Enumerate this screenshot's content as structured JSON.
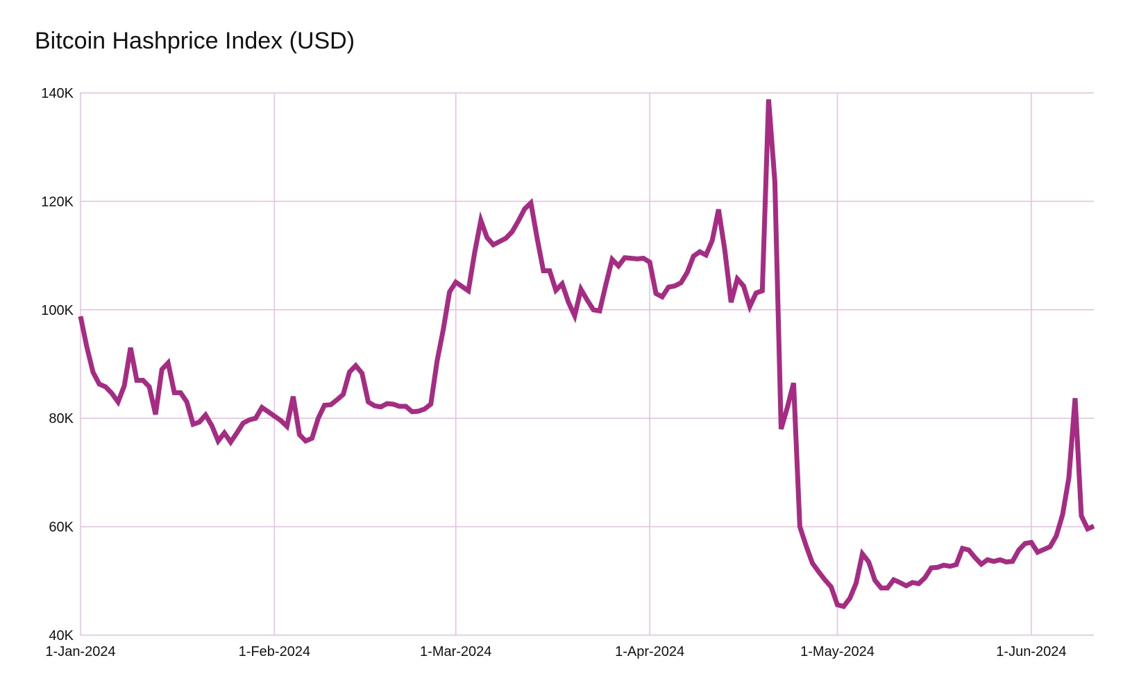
{
  "chart_data": {
    "type": "line",
    "title": "Bitcoin Hashprice Index (USD)",
    "xlabel": "",
    "ylabel": "",
    "x_range": [
      "2024-01-01",
      "2024-06-11"
    ],
    "ylim": [
      40000,
      140000
    ],
    "yticks": [
      {
        "value": 40000,
        "label": "40K"
      },
      {
        "value": 60000,
        "label": "60K"
      },
      {
        "value": 80000,
        "label": "80K"
      },
      {
        "value": 100000,
        "label": "100K"
      },
      {
        "value": 120000,
        "label": "120K"
      },
      {
        "value": 140000,
        "label": "140K"
      }
    ],
    "xticks": [
      {
        "date": "2024-01-01",
        "label": "1-Jan-2024"
      },
      {
        "date": "2024-02-01",
        "label": "1-Feb-2024"
      },
      {
        "date": "2024-03-01",
        "label": "1-Mar-2024"
      },
      {
        "date": "2024-04-01",
        "label": "1-Apr-2024"
      },
      {
        "date": "2024-05-01",
        "label": "1-May-2024"
      },
      {
        "date": "2024-06-01",
        "label": "1-Jun-2024"
      }
    ],
    "grid": true,
    "legend": "none",
    "colors": {
      "line": "#A62B82",
      "grid": "#E6BEDF"
    },
    "series": [
      {
        "name": "",
        "x": [
          "2024-01-01",
          "2024-01-02",
          "2024-01-03",
          "2024-01-04",
          "2024-01-05",
          "2024-01-06",
          "2024-01-07",
          "2024-01-08",
          "2024-01-09",
          "2024-01-10",
          "2024-01-11",
          "2024-01-12",
          "2024-01-13",
          "2024-01-14",
          "2024-01-15",
          "2024-01-16",
          "2024-01-17",
          "2024-01-18",
          "2024-01-19",
          "2024-01-20",
          "2024-01-21",
          "2024-01-22",
          "2024-01-23",
          "2024-01-24",
          "2024-01-25",
          "2024-01-26",
          "2024-01-27",
          "2024-01-28",
          "2024-01-29",
          "2024-01-30",
          "2024-01-31",
          "2024-02-01",
          "2024-02-02",
          "2024-02-03",
          "2024-02-04",
          "2024-02-05",
          "2024-02-06",
          "2024-02-07",
          "2024-02-08",
          "2024-02-09",
          "2024-02-10",
          "2024-02-11",
          "2024-02-12",
          "2024-02-13",
          "2024-02-14",
          "2024-02-15",
          "2024-02-16",
          "2024-02-17",
          "2024-02-18",
          "2024-02-19",
          "2024-02-20",
          "2024-02-21",
          "2024-02-22",
          "2024-02-23",
          "2024-02-24",
          "2024-02-25",
          "2024-02-26",
          "2024-02-27",
          "2024-02-28",
          "2024-02-29",
          "2024-03-01",
          "2024-03-02",
          "2024-03-03",
          "2024-03-04",
          "2024-03-05",
          "2024-03-06",
          "2024-03-07",
          "2024-03-08",
          "2024-03-09",
          "2024-03-10",
          "2024-03-11",
          "2024-03-12",
          "2024-03-13",
          "2024-03-14",
          "2024-03-15",
          "2024-03-16",
          "2024-03-17",
          "2024-03-18",
          "2024-03-19",
          "2024-03-20",
          "2024-03-21",
          "2024-03-22",
          "2024-03-23",
          "2024-03-24",
          "2024-03-25",
          "2024-03-26",
          "2024-03-27",
          "2024-03-28",
          "2024-03-29",
          "2024-03-30",
          "2024-03-31",
          "2024-04-01",
          "2024-04-02",
          "2024-04-03",
          "2024-04-04",
          "2024-04-05",
          "2024-04-06",
          "2024-04-07",
          "2024-04-08",
          "2024-04-09",
          "2024-04-10",
          "2024-04-11",
          "2024-04-12",
          "2024-04-13",
          "2024-04-14",
          "2024-04-15",
          "2024-04-16",
          "2024-04-17",
          "2024-04-18",
          "2024-04-19",
          "2024-04-20",
          "2024-04-21",
          "2024-04-22",
          "2024-04-23",
          "2024-04-24",
          "2024-04-25",
          "2024-04-26",
          "2024-04-27",
          "2024-04-28",
          "2024-04-29",
          "2024-04-30",
          "2024-05-01",
          "2024-05-02",
          "2024-05-03",
          "2024-05-04",
          "2024-05-05",
          "2024-05-06",
          "2024-05-07",
          "2024-05-08",
          "2024-05-09",
          "2024-05-10",
          "2024-05-11",
          "2024-05-12",
          "2024-05-13",
          "2024-05-14",
          "2024-05-15",
          "2024-05-16",
          "2024-05-17",
          "2024-05-18",
          "2024-05-19",
          "2024-05-20",
          "2024-05-21",
          "2024-05-22",
          "2024-05-23",
          "2024-05-24",
          "2024-05-25",
          "2024-05-26",
          "2024-05-27",
          "2024-05-28",
          "2024-05-29",
          "2024-05-30",
          "2024-05-31",
          "2024-06-01",
          "2024-06-02",
          "2024-06-03",
          "2024-06-04",
          "2024-06-05",
          "2024-06-06",
          "2024-06-07",
          "2024-06-08",
          "2024-06-09",
          "2024-06-10",
          "2024-06-11"
        ],
        "values": [
          98800,
          93200,
          88500,
          86300,
          85800,
          84600,
          83000,
          86000,
          93000,
          87000,
          87000,
          85800,
          80700,
          89000,
          90200,
          84700,
          84700,
          83000,
          78900,
          79300,
          80600,
          78600,
          75800,
          77300,
          75600,
          77300,
          79100,
          79700,
          80000,
          82000,
          81200,
          80400,
          79600,
          78500,
          84000,
          77000,
          75800,
          76300,
          80000,
          82400,
          82500,
          83400,
          84400,
          88500,
          89700,
          88300,
          83000,
          82300,
          82100,
          82700,
          82600,
          82200,
          82200,
          81200,
          81300,
          81700,
          82600,
          90500,
          96400,
          103300,
          105100,
          104300,
          103500,
          110500,
          116500,
          113300,
          112000,
          112600,
          113200,
          114400,
          116400,
          118600,
          119700,
          113200,
          107200,
          107200,
          103600,
          104800,
          101400,
          98900,
          103800,
          101800,
          100000,
          99800,
          104700,
          109300,
          108100,
          109600,
          109500,
          109400,
          109500,
          108800,
          103000,
          102400,
          104200,
          104400,
          105000,
          106900,
          109900,
          110700,
          110100,
          112800,
          118500,
          111000,
          101400,
          105700,
          104400,
          100600,
          103100,
          103500,
          138800,
          123600,
          78000,
          82000,
          86500,
          60000,
          56500,
          53300,
          51700,
          50200,
          48900,
          45600,
          45300,
          46800,
          49600,
          55000,
          53500,
          50100,
          48700,
          48700,
          50200,
          49700,
          49100,
          49700,
          49500,
          50600,
          52400,
          52500,
          52900,
          52700,
          53000,
          56000,
          55700,
          54300,
          53100,
          53900,
          53600,
          53900,
          53500,
          53600,
          55700,
          56900,
          57100,
          55300,
          55800,
          56300,
          58300,
          62200,
          69000,
          83700,
          62000,
          59600,
          60100
        ]
      }
    ]
  }
}
